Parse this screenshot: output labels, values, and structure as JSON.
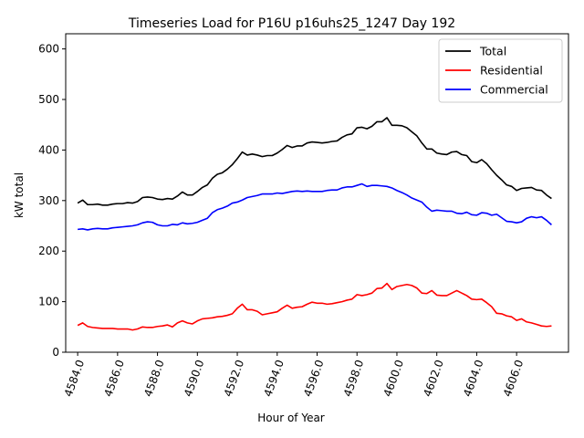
{
  "chart_data": {
    "type": "line",
    "title": "Timeseries Load for P16U p16uhs25_1247  Day 192",
    "xlabel": "Hour of Year",
    "ylabel": "kW total",
    "xlim": [
      4583.4,
      4608.6
    ],
    "ylim": [
      0,
      630
    ],
    "x_ticks": [
      4584,
      4586,
      4588,
      4590,
      4592,
      4594,
      4596,
      4598,
      4600,
      4602,
      4604,
      4606
    ],
    "x_tick_labels": [
      "4584.0",
      "4586.0",
      "4588.0",
      "4590.0",
      "4592.0",
      "4594.0",
      "4596.0",
      "4598.0",
      "4600.0",
      "4602.0",
      "4604.0",
      "4606.0"
    ],
    "y_ticks": [
      0,
      100,
      200,
      300,
      400,
      500,
      600
    ],
    "y_tick_labels": [
      "0",
      "100",
      "200",
      "300",
      "400",
      "500",
      "600"
    ],
    "legend_position": "top-right",
    "x_start": 4584,
    "x_step": 0.25,
    "series": [
      {
        "name": "Total",
        "color": "#000000",
        "values": [
          295,
          301,
          292,
          292,
          293,
          291,
          291,
          293,
          294,
          294,
          296,
          295,
          298,
          306,
          307,
          306,
          303,
          302,
          304,
          303,
          309,
          317,
          311,
          311,
          318,
          326,
          331,
          344,
          352,
          355,
          362,
          371,
          383,
          396,
          390,
          392,
          390,
          387,
          389,
          389,
          394,
          401,
          409,
          405,
          408,
          408,
          414,
          416,
          415,
          414,
          415,
          417,
          418,
          425,
          430,
          432,
          444,
          445,
          442,
          447,
          456,
          456,
          464,
          449,
          449,
          448,
          444,
          436,
          428,
          414,
          402,
          402,
          394,
          392,
          391,
          396,
          397,
          391,
          389,
          377,
          375,
          381,
          373,
          361,
          350,
          341,
          331,
          328,
          320,
          324,
          325,
          326,
          321,
          320,
          311,
          304
        ]
      },
      {
        "name": "Residential",
        "color": "#ff0000",
        "values": [
          53,
          58,
          51,
          49,
          48,
          47,
          47,
          47,
          46,
          46,
          46,
          44,
          46,
          50,
          49,
          49,
          51,
          52,
          54,
          50,
          58,
          62,
          58,
          56,
          62,
          66,
          67,
          68,
          70,
          71,
          73,
          76,
          87,
          95,
          84,
          84,
          81,
          74,
          76,
          78,
          80,
          87,
          93,
          87,
          89,
          90,
          95,
          99,
          97,
          97,
          95,
          96,
          98,
          100,
          103,
          105,
          114,
          112,
          114,
          117,
          126,
          127,
          136,
          124,
          130,
          132,
          134,
          132,
          127,
          117,
          116,
          122,
          113,
          112,
          112,
          117,
          122,
          117,
          112,
          105,
          104,
          105,
          98,
          90,
          77,
          76,
          72,
          70,
          63,
          66,
          60,
          58,
          55,
          52,
          51,
          52
        ]
      },
      {
        "name": "Commercial",
        "color": "#0000ff",
        "values": [
          243,
          244,
          242,
          244,
          245,
          244,
          244,
          246,
          247,
          248,
          249,
          250,
          252,
          256,
          258,
          257,
          252,
          250,
          250,
          253,
          252,
          256,
          254,
          255,
          257,
          261,
          265,
          276,
          282,
          285,
          289,
          295,
          297,
          301,
          306,
          308,
          310,
          313,
          313,
          313,
          315,
          314,
          316,
          318,
          319,
          318,
          319,
          318,
          318,
          318,
          320,
          321,
          321,
          325,
          327,
          327,
          330,
          333,
          328,
          330,
          330,
          329,
          328,
          325,
          320,
          316,
          311,
          305,
          301,
          297,
          287,
          279,
          281,
          280,
          279,
          279,
          275,
          274,
          277,
          272,
          271,
          276,
          275,
          271,
          273,
          266,
          259,
          258,
          256,
          258,
          265,
          268,
          266,
          268,
          261,
          252
        ]
      }
    ]
  }
}
